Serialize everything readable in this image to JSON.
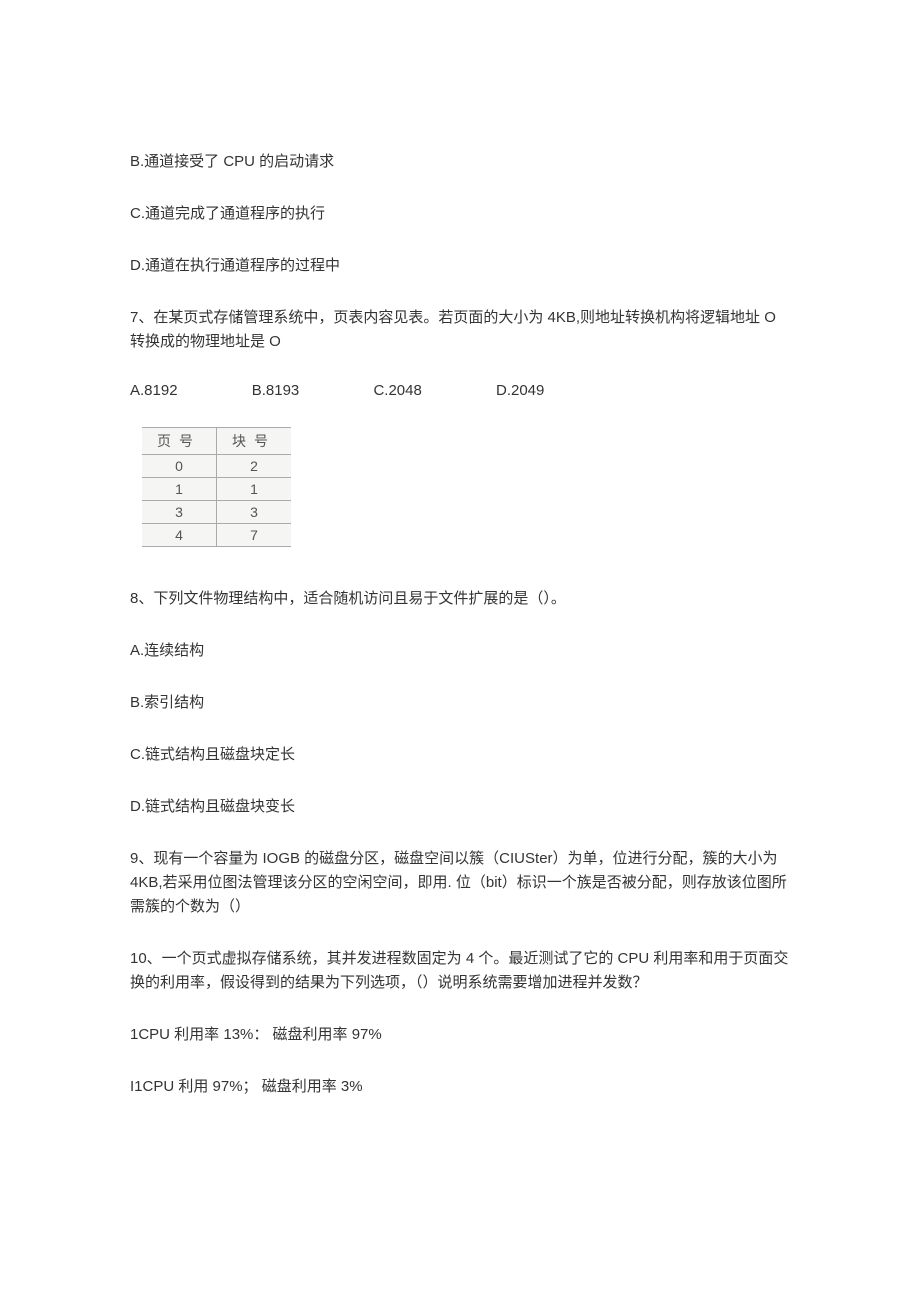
{
  "q6": {
    "optB": "B.通道接受了 CPU 的启动请求",
    "optC": "C.通道完成了通道程序的执行",
    "optD": "D.通道在执行通道程序的过程中"
  },
  "q7": {
    "stem": "7、在某页式存储管理系统中，页表内容见表。若页面的大小为 4KB,则地址转换机构将逻辑地址 O 转换成的物理地址是 O",
    "optA": "A.8192",
    "optB": "B.8193",
    "optC": "C.2048",
    "optD": "D.2049",
    "table": {
      "col1_header": "页号",
      "col2_header": "块号",
      "rows": [
        [
          "0",
          "2"
        ],
        [
          "1",
          "1"
        ],
        [
          "3",
          "3"
        ],
        [
          "4",
          "7"
        ]
      ]
    }
  },
  "q8": {
    "stem": "8、下列文件物理结构中，适合随机访问且易于文件扩展的是（）。",
    "optA": "A.连续结构",
    "optB": "B.索引结构",
    "optC": "C.链式结构且磁盘块定长",
    "optD": "D.链式结构且磁盘块变长"
  },
  "q9": {
    "stem": "9、现有一个容量为 IOGB 的磁盘分区，磁盘空间以簇（CIUSter）为单，位进行分配，簇的大小为 4KB,若采用位图法管理该分区的空闲空间，即用. 位（bit）标识一个族是否被分配，则存放该位图所需簇的个数为（）"
  },
  "q10": {
    "stem": "10、一个页式虚拟存储系统，其并发进程数固定为 4 个。最近测试了它的 CPU 利用率和用于页面交换的利用率，假设得到的结果为下列选项，（）说明系统需要增加进程并发数？",
    "line1": "1CPU 利用率 13%： 磁盘利用率 97%",
    "line2": "I1CPU 利用 97%； 磁盘利用率 3%"
  }
}
